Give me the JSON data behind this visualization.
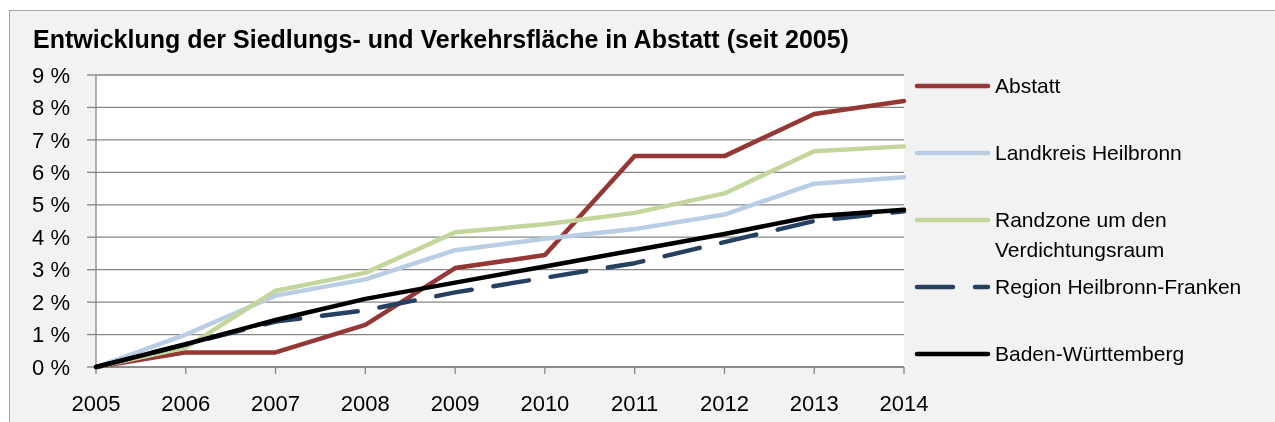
{
  "chart_data": {
    "type": "line",
    "title": "Entwicklung der Siedlungs- und Verkehrsfläche in Abstatt (seit 2005)",
    "categories": [
      "2005",
      "2006",
      "2007",
      "2008",
      "2009",
      "2010",
      "2011",
      "2012",
      "2013",
      "2014"
    ],
    "series": [
      {
        "name": "Abstatt",
        "color": "#953735",
        "values": [
          0,
          0.45,
          0.45,
          1.3,
          3.05,
          3.45,
          6.5,
          6.5,
          7.8,
          8.2
        ]
      },
      {
        "name": "Landkreis Heilbronn",
        "color": "#b9cde5",
        "values": [
          0,
          1.0,
          2.2,
          2.7,
          3.6,
          3.95,
          4.25,
          4.7,
          5.65,
          5.85
        ]
      },
      {
        "name": "Randzone um den Verdichtungsraum",
        "color": "#c3d69b",
        "values": [
          0,
          0.6,
          2.35,
          2.9,
          4.15,
          4.4,
          4.75,
          5.35,
          6.65,
          6.8
        ]
      },
      {
        "name": "Region Heilbronn-Franken",
        "color": "#254061",
        "line_style": "dashed",
        "values": [
          0,
          0.7,
          1.4,
          1.75,
          2.3,
          2.75,
          3.2,
          3.85,
          4.5,
          4.8
        ]
      },
      {
        "name": "Baden-Württemberg",
        "color": "#000000",
        "values": [
          0,
          0.7,
          1.45,
          2.1,
          2.6,
          3.1,
          3.6,
          4.1,
          4.65,
          4.85
        ]
      }
    ],
    "ylim": [
      0,
      9
    ],
    "yticks": [
      {
        "value": 0,
        "label": "0 %"
      },
      {
        "value": 1,
        "label": "1 %"
      },
      {
        "value": 2,
        "label": "2 %"
      },
      {
        "value": 3,
        "label": "3 %"
      },
      {
        "value": 4,
        "label": "4 %"
      },
      {
        "value": 5,
        "label": "5 %"
      },
      {
        "value": 6,
        "label": "6 %"
      },
      {
        "value": 7,
        "label": "7 %"
      },
      {
        "value": 8,
        "label": "8 %"
      },
      {
        "value": 9,
        "label": "9 %"
      }
    ],
    "grid": "y",
    "legend": "right",
    "line_style": "solid",
    "marker": "none"
  }
}
